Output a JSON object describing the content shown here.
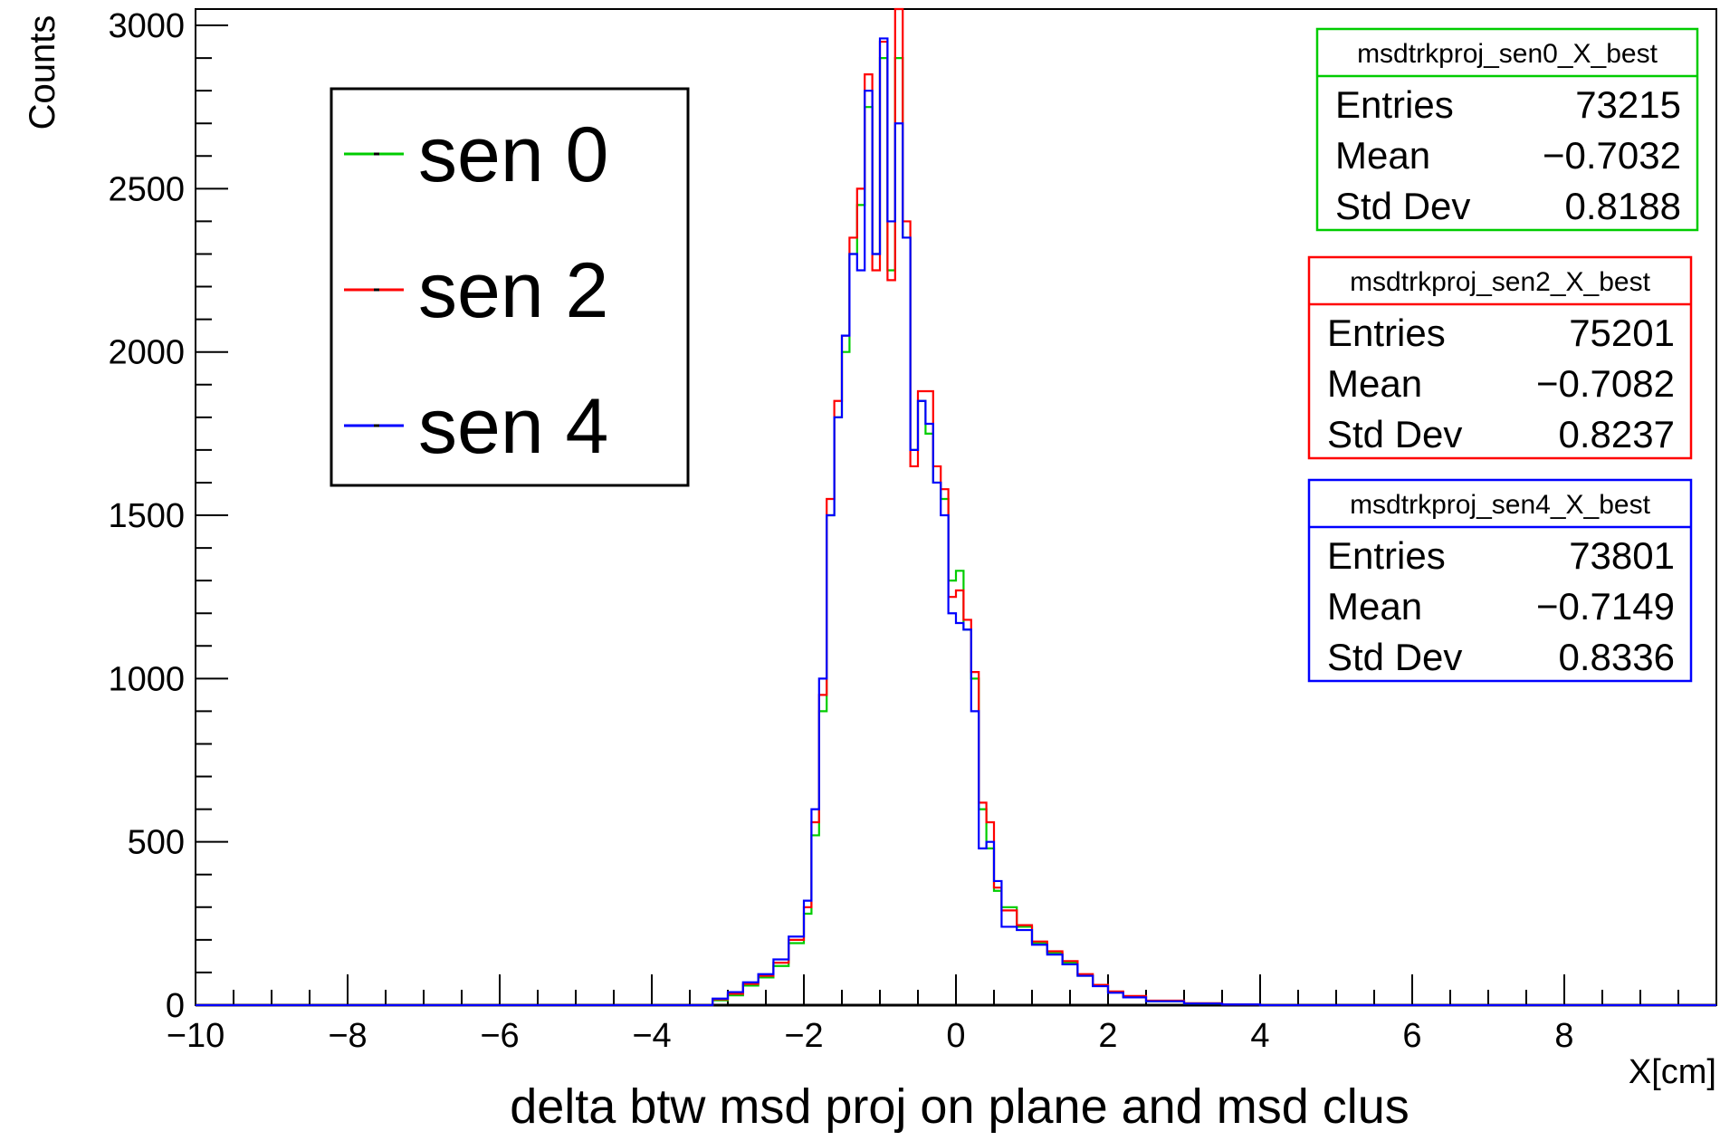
{
  "chart_data": {
    "type": "line",
    "xlabel": "delta btw msd proj on plane and msd clus",
    "xunit_label": "X[cm]",
    "ylabel": "Counts",
    "xlim": [
      -10,
      10
    ],
    "ylim": [
      0,
      3050
    ],
    "x_ticks": [
      -10,
      -8,
      -6,
      -4,
      -2,
      0,
      2,
      4,
      6,
      8
    ],
    "x_tick_labels": [
      "−10",
      "−8",
      "−6",
      "−4",
      "−2",
      "0",
      "2",
      "4",
      "6",
      "8"
    ],
    "y_ticks": [
      0,
      500,
      1000,
      1500,
      2000,
      2500,
      3000
    ],
    "y_tick_labels": [
      "0",
      "500",
      "1000",
      "1500",
      "2000",
      "2500",
      "3000"
    ],
    "grid": false,
    "legend": {
      "placement": "top-left",
      "entries": [
        {
          "label": "sen 0",
          "color": "#00cc00"
        },
        {
          "label": "sen 2",
          "color": "#ff0000"
        },
        {
          "label": "sen 4",
          "color": "#0000ff"
        }
      ]
    },
    "series": [
      {
        "name": "sen 0",
        "color": "#00cc00",
        "x": [
          -3.5,
          -3.2,
          -3.0,
          -2.8,
          -2.6,
          -2.4,
          -2.2,
          -2.0,
          -1.9,
          -1.8,
          -1.7,
          -1.6,
          -1.5,
          -1.4,
          -1.3,
          -1.2,
          -1.1,
          -1.0,
          -0.9,
          -0.8,
          -0.7,
          -0.6,
          -0.5,
          -0.4,
          -0.3,
          -0.2,
          -0.1,
          0.0,
          0.1,
          0.2,
          0.3,
          0.4,
          0.5,
          0.6,
          0.8,
          1.0,
          1.2,
          1.4,
          1.6,
          1.8,
          2.0,
          2.2,
          2.5,
          3.0,
          3.5,
          4.0
        ],
        "values": [
          0,
          15,
          30,
          60,
          85,
          120,
          190,
          280,
          520,
          900,
          1500,
          1800,
          2000,
          2300,
          2450,
          2750,
          2300,
          2900,
          2250,
          2900,
          2350,
          1700,
          1850,
          1750,
          1600,
          1550,
          1300,
          1330,
          1150,
          1000,
          600,
          480,
          350,
          300,
          240,
          190,
          160,
          130,
          90,
          60,
          40,
          25,
          12,
          5,
          2,
          0
        ]
      },
      {
        "name": "sen 2",
        "color": "#ff0000",
        "x": [
          -3.5,
          -3.2,
          -3.0,
          -2.8,
          -2.6,
          -2.4,
          -2.2,
          -2.0,
          -1.9,
          -1.8,
          -1.7,
          -1.6,
          -1.5,
          -1.4,
          -1.3,
          -1.2,
          -1.1,
          -1.0,
          -0.9,
          -0.8,
          -0.7,
          -0.6,
          -0.5,
          -0.4,
          -0.3,
          -0.2,
          -0.1,
          0.0,
          0.1,
          0.2,
          0.3,
          0.4,
          0.5,
          0.6,
          0.8,
          1.0,
          1.2,
          1.4,
          1.6,
          1.8,
          2.0,
          2.2,
          2.5,
          3.0,
          3.5,
          4.0
        ],
        "values": [
          0,
          18,
          35,
          65,
          90,
          130,
          200,
          300,
          560,
          950,
          1550,
          1850,
          2050,
          2350,
          2500,
          2850,
          2250,
          2950,
          2220,
          3050,
          2400,
          1650,
          1880,
          1880,
          1650,
          1580,
          1250,
          1270,
          1180,
          1020,
          620,
          560,
          360,
          290,
          245,
          195,
          165,
          135,
          95,
          62,
          42,
          28,
          14,
          6,
          2,
          0
        ]
      },
      {
        "name": "sen 4",
        "color": "#0000ff",
        "x": [
          -3.5,
          -3.2,
          -3.0,
          -2.8,
          -2.6,
          -2.4,
          -2.2,
          -2.0,
          -1.9,
          -1.8,
          -1.7,
          -1.6,
          -1.5,
          -1.4,
          -1.3,
          -1.2,
          -1.1,
          -1.0,
          -0.9,
          -0.8,
          -0.7,
          -0.6,
          -0.5,
          -0.4,
          -0.3,
          -0.2,
          -0.1,
          0.0,
          0.1,
          0.2,
          0.3,
          0.4,
          0.5,
          0.6,
          0.8,
          1.0,
          1.2,
          1.4,
          1.6,
          1.8,
          2.0,
          2.2,
          2.5,
          3.0,
          3.5,
          4.0
        ],
        "values": [
          0,
          20,
          40,
          70,
          95,
          140,
          210,
          320,
          600,
          1000,
          1500,
          1800,
          2050,
          2300,
          2250,
          2800,
          2300,
          2960,
          2400,
          2700,
          2350,
          1700,
          1850,
          1780,
          1600,
          1500,
          1200,
          1170,
          1150,
          900,
          480,
          500,
          380,
          240,
          230,
          185,
          155,
          125,
          90,
          58,
          38,
          24,
          12,
          5,
          2,
          0
        ]
      }
    ],
    "stats_boxes": [
      {
        "title": "msdtrkproj_sen0_X_best",
        "color": "#00cc00",
        "rows": [
          {
            "label": "Entries",
            "value": "73215"
          },
          {
            "label": "Mean",
            "value": "−0.7032"
          },
          {
            "label": "Std Dev",
            "value": "0.8188"
          }
        ]
      },
      {
        "title": "msdtrkproj_sen2_X_best",
        "color": "#ff0000",
        "rows": [
          {
            "label": "Entries",
            "value": "75201"
          },
          {
            "label": "Mean",
            "value": "−0.7082"
          },
          {
            "label": "Std Dev",
            "value": "0.8237"
          }
        ]
      },
      {
        "title": "msdtrkproj_sen4_X_best",
        "color": "#0000ff",
        "rows": [
          {
            "label": "Entries",
            "value": "73801"
          },
          {
            "label": "Mean",
            "value": "−0.7149"
          },
          {
            "label": "Std Dev",
            "value": "0.8336"
          }
        ]
      }
    ]
  }
}
